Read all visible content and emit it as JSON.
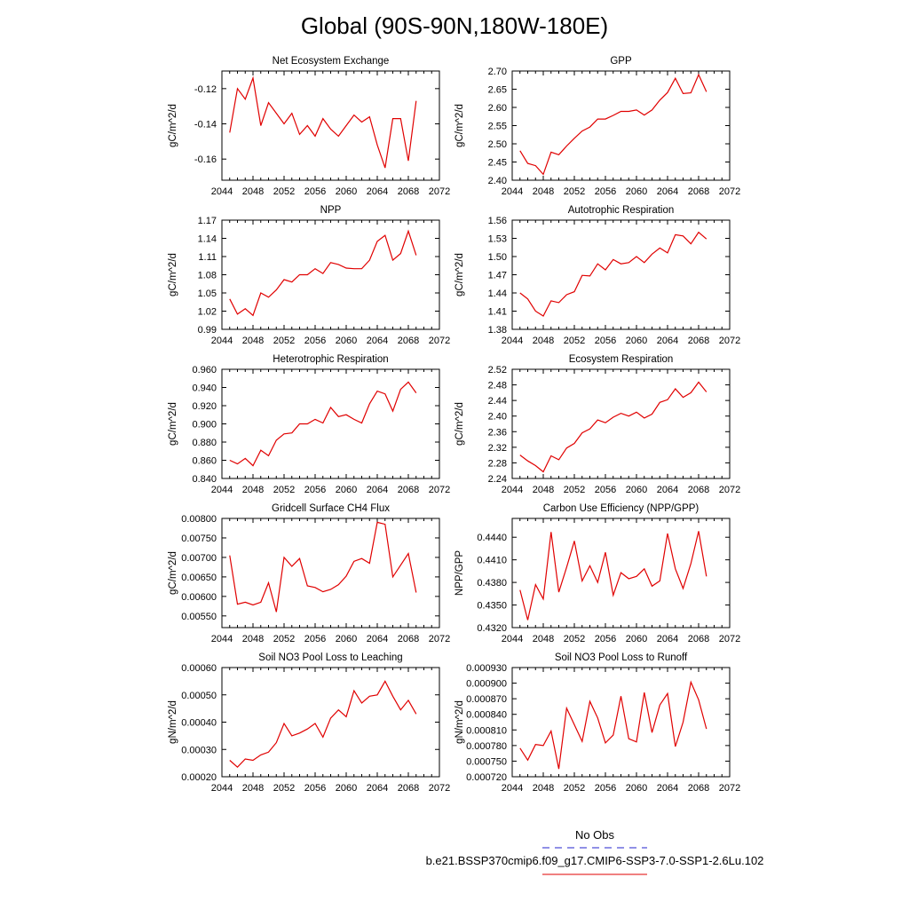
{
  "figure": {
    "title": "Global (90S-90N,180W-180E)",
    "legend": [
      {
        "label": "No Obs",
        "color": "#2222cc",
        "dash": "dashed"
      },
      {
        "label": "b.e21.BSSP370cmip6.f09_g17.CMIP6-SSP3-7.0-SSP1-2.6Lu.102",
        "color": "#e00000",
        "dash": "solid"
      }
    ]
  },
  "chart_data": [
    {
      "type": "line",
      "title": "Net Ecosystem Exchange",
      "ylabel": "gC/m^2/d",
      "xlim": [
        2044,
        2072
      ],
      "ylim": [
        -0.172,
        -0.11
      ],
      "xticks": [
        "2044",
        "2048",
        "2052",
        "2056",
        "2060",
        "2064",
        "2068",
        "2072"
      ],
      "yticks": [
        "-0.12",
        "-0.14",
        "-0.16"
      ],
      "ytick_values": [
        -0.12,
        -0.14,
        -0.16
      ],
      "color": "#e00000",
      "x": [
        2045,
        2046,
        2047,
        2048,
        2049,
        2050,
        2051,
        2052,
        2053,
        2054,
        2055,
        2056,
        2057,
        2058,
        2059,
        2060,
        2061,
        2062,
        2063,
        2064,
        2065,
        2066,
        2067,
        2068,
        2069
      ],
      "y": [
        -0.145,
        -0.12,
        -0.126,
        -0.114,
        -0.141,
        -0.128,
        -0.134,
        -0.14,
        -0.134,
        -0.146,
        -0.141,
        -0.147,
        -0.137,
        -0.143,
        -0.147,
        -0.141,
        -0.135,
        -0.139,
        -0.136,
        -0.152,
        -0.165,
        -0.137,
        -0.137,
        -0.161,
        -0.127
      ]
    },
    {
      "type": "line",
      "title": "GPP",
      "ylabel": "gC/m^2/d",
      "xlim": [
        2044,
        2072
      ],
      "ylim": [
        2.4,
        2.7
      ],
      "xticks": [
        "2044",
        "2048",
        "2052",
        "2056",
        "2060",
        "2064",
        "2068",
        "2072"
      ],
      "yticks": [
        "2.70",
        "2.65",
        "2.60",
        "2.55",
        "2.50",
        "2.45",
        "2.40"
      ],
      "ytick_values": [
        2.7,
        2.65,
        2.6,
        2.55,
        2.5,
        2.45,
        2.4
      ],
      "color": "#e00000",
      "x": [
        2045,
        2046,
        2047,
        2048,
        2049,
        2050,
        2051,
        2052,
        2053,
        2054,
        2055,
        2056,
        2057,
        2058,
        2059,
        2060,
        2061,
        2062,
        2063,
        2064,
        2065,
        2066,
        2067,
        2068,
        2069
      ],
      "y": [
        2.481,
        2.446,
        2.44,
        2.416,
        2.477,
        2.47,
        2.494,
        2.515,
        2.535,
        2.546,
        2.568,
        2.568,
        2.578,
        2.589,
        2.589,
        2.593,
        2.579,
        2.593,
        2.62,
        2.641,
        2.68,
        2.638,
        2.64,
        2.69,
        2.643
      ]
    },
    {
      "type": "line",
      "title": "NPP",
      "ylabel": "gC/m^2/d",
      "xlim": [
        2044,
        2072
      ],
      "ylim": [
        0.99,
        1.17
      ],
      "xticks": [
        "2044",
        "2048",
        "2052",
        "2056",
        "2060",
        "2064",
        "2068",
        "2072"
      ],
      "yticks": [
        "1.17",
        "1.14",
        "1.11",
        "1.08",
        "1.05",
        "1.02",
        "0.99"
      ],
      "ytick_values": [
        1.17,
        1.14,
        1.11,
        1.08,
        1.05,
        1.02,
        0.99
      ],
      "color": "#e00000",
      "x": [
        2045,
        2046,
        2047,
        2048,
        2049,
        2050,
        2051,
        2052,
        2053,
        2054,
        2055,
        2056,
        2057,
        2058,
        2059,
        2060,
        2061,
        2062,
        2063,
        2064,
        2065,
        2066,
        2067,
        2068,
        2069
      ],
      "y": [
        1.04,
        1.015,
        1.024,
        1.013,
        1.05,
        1.043,
        1.055,
        1.072,
        1.068,
        1.08,
        1.08,
        1.09,
        1.082,
        1.1,
        1.097,
        1.091,
        1.09,
        1.09,
        1.104,
        1.135,
        1.145,
        1.104,
        1.115,
        1.152,
        1.112
      ]
    },
    {
      "type": "line",
      "title": "Autotrophic Respiration",
      "ylabel": "gC/m^2/d",
      "xlim": [
        2044,
        2072
      ],
      "ylim": [
        1.38,
        1.56
      ],
      "xticks": [
        "2044",
        "2048",
        "2052",
        "2056",
        "2060",
        "2064",
        "2068",
        "2072"
      ],
      "yticks": [
        "1.56",
        "1.53",
        "1.50",
        "1.47",
        "1.44",
        "1.41",
        "1.38"
      ],
      "ytick_values": [
        1.56,
        1.53,
        1.5,
        1.47,
        1.44,
        1.41,
        1.38
      ],
      "color": "#e00000",
      "x": [
        2045,
        2046,
        2047,
        2048,
        2049,
        2050,
        2051,
        2052,
        2053,
        2054,
        2055,
        2056,
        2057,
        2058,
        2059,
        2060,
        2061,
        2062,
        2063,
        2064,
        2065,
        2066,
        2067,
        2068,
        2069
      ],
      "y": [
        1.44,
        1.43,
        1.41,
        1.402,
        1.427,
        1.424,
        1.437,
        1.442,
        1.469,
        1.468,
        1.488,
        1.478,
        1.495,
        1.488,
        1.49,
        1.5,
        1.49,
        1.504,
        1.514,
        1.506,
        1.536,
        1.534,
        1.521,
        1.54,
        1.529
      ]
    },
    {
      "type": "line",
      "title": "Heterotrophic Respiration",
      "ylabel": "gC/m^2/d",
      "xlim": [
        2044,
        2072
      ],
      "ylim": [
        0.84,
        0.96
      ],
      "xticks": [
        "2044",
        "2048",
        "2052",
        "2056",
        "2060",
        "2064",
        "2068",
        "2072"
      ],
      "yticks": [
        "0.960",
        "0.940",
        "0.920",
        "0.900",
        "0.880",
        "0.860",
        "0.840"
      ],
      "ytick_values": [
        0.96,
        0.94,
        0.92,
        0.9,
        0.88,
        0.86,
        0.84
      ],
      "color": "#e00000",
      "x": [
        2045,
        2046,
        2047,
        2048,
        2049,
        2050,
        2051,
        2052,
        2053,
        2054,
        2055,
        2056,
        2057,
        2058,
        2059,
        2060,
        2061,
        2062,
        2063,
        2064,
        2065,
        2066,
        2067,
        2068,
        2069
      ],
      "y": [
        0.86,
        0.856,
        0.862,
        0.854,
        0.871,
        0.865,
        0.882,
        0.889,
        0.89,
        0.9,
        0.9,
        0.905,
        0.901,
        0.918,
        0.908,
        0.91,
        0.905,
        0.901,
        0.922,
        0.936,
        0.933,
        0.914,
        0.938,
        0.946,
        0.934
      ]
    },
    {
      "type": "line",
      "title": "Ecosystem Respiration",
      "ylabel": "gC/m^2/d",
      "xlim": [
        2044,
        2072
      ],
      "ylim": [
        2.24,
        2.52
      ],
      "xticks": [
        "2044",
        "2048",
        "2052",
        "2056",
        "2060",
        "2064",
        "2068",
        "2072"
      ],
      "yticks": [
        "2.52",
        "2.48",
        "2.44",
        "2.40",
        "2.36",
        "2.32",
        "2.28",
        "2.24"
      ],
      "ytick_values": [
        2.52,
        2.48,
        2.44,
        2.4,
        2.36,
        2.32,
        2.28,
        2.24
      ],
      "color": "#e00000",
      "x": [
        2045,
        2046,
        2047,
        2048,
        2049,
        2050,
        2051,
        2052,
        2053,
        2054,
        2055,
        2056,
        2057,
        2058,
        2059,
        2060,
        2061,
        2062,
        2063,
        2064,
        2065,
        2066,
        2067,
        2068,
        2069
      ],
      "y": [
        2.3,
        2.285,
        2.273,
        2.257,
        2.298,
        2.288,
        2.318,
        2.33,
        2.357,
        2.367,
        2.39,
        2.383,
        2.397,
        2.407,
        2.4,
        2.41,
        2.395,
        2.405,
        2.435,
        2.442,
        2.47,
        2.448,
        2.46,
        2.487,
        2.462
      ]
    },
    {
      "type": "line",
      "title": "Gridcell Surface CH4 Flux",
      "ylabel": "gC/m^2/d",
      "xlim": [
        2044,
        2072
      ],
      "ylim": [
        0.0052,
        0.008
      ],
      "xticks": [
        "2044",
        "2048",
        "2052",
        "2056",
        "2060",
        "2064",
        "2068",
        "2072"
      ],
      "yticks": [
        "0.00800",
        "0.00750",
        "0.00700",
        "0.00650",
        "0.00600",
        "0.00550"
      ],
      "ytick_values": [
        0.008,
        0.0075,
        0.007,
        0.0065,
        0.006,
        0.0055
      ],
      "color": "#e00000",
      "x": [
        2045,
        2046,
        2047,
        2048,
        2049,
        2050,
        2051,
        2052,
        2053,
        2054,
        2055,
        2056,
        2057,
        2058,
        2059,
        2060,
        2061,
        2062,
        2063,
        2064,
        2065,
        2066,
        2067,
        2068,
        2069
      ],
      "y": [
        0.00705,
        0.0058,
        0.00585,
        0.00578,
        0.00585,
        0.00635,
        0.0056,
        0.007,
        0.00677,
        0.00697,
        0.00627,
        0.00623,
        0.00612,
        0.00618,
        0.0063,
        0.00652,
        0.0069,
        0.00697,
        0.00685,
        0.0079,
        0.00785,
        0.0065,
        0.0068,
        0.0071,
        0.0061
      ]
    },
    {
      "type": "line",
      "title": "Carbon Use Efficiency (NPP/GPP)",
      "ylabel": "NPP/GPP",
      "xlim": [
        2044,
        2072
      ],
      "ylim": [
        0.432,
        0.4465
      ],
      "xticks": [
        "2044",
        "2048",
        "2052",
        "2056",
        "2060",
        "2064",
        "2068",
        "2072"
      ],
      "yticks": [
        "0.4440",
        "0.4410",
        "0.4380",
        "0.4350",
        "0.4320"
      ],
      "ytick_values": [
        0.444,
        0.441,
        0.438,
        0.435,
        0.432
      ],
      "color": "#e00000",
      "x": [
        2045,
        2046,
        2047,
        2048,
        2049,
        2050,
        2051,
        2052,
        2053,
        2054,
        2055,
        2056,
        2057,
        2058,
        2059,
        2060,
        2061,
        2062,
        2063,
        2064,
        2065,
        2066,
        2067,
        2068,
        2069
      ],
      "y": [
        0.437,
        0.433,
        0.4377,
        0.4358,
        0.4447,
        0.4367,
        0.44,
        0.4435,
        0.4382,
        0.4402,
        0.438,
        0.442,
        0.4363,
        0.4393,
        0.4385,
        0.4388,
        0.4398,
        0.4375,
        0.4382,
        0.4445,
        0.4398,
        0.4372,
        0.4405,
        0.4448,
        0.4388
      ]
    },
    {
      "type": "line",
      "title": "Soil NO3 Pool Loss to Leaching",
      "ylabel": "gN/m^2/d",
      "xlim": [
        2044,
        2072
      ],
      "ylim": [
        0.0002,
        0.0006
      ],
      "xticks": [
        "2044",
        "2048",
        "2052",
        "2056",
        "2060",
        "2064",
        "2068",
        "2072"
      ],
      "yticks": [
        "0.00060",
        "0.00050",
        "0.00040",
        "0.00030",
        "0.00020"
      ],
      "ytick_values": [
        0.0006,
        0.0005,
        0.0004,
        0.0003,
        0.0002
      ],
      "color": "#e00000",
      "x": [
        2045,
        2046,
        2047,
        2048,
        2049,
        2050,
        2051,
        2052,
        2053,
        2054,
        2055,
        2056,
        2057,
        2058,
        2059,
        2060,
        2061,
        2062,
        2063,
        2064,
        2065,
        2066,
        2067,
        2068,
        2069
      ],
      "y": [
        0.00026,
        0.000235,
        0.000265,
        0.00026,
        0.00028,
        0.00029,
        0.000325,
        0.000395,
        0.00035,
        0.00036,
        0.000375,
        0.000395,
        0.000345,
        0.000415,
        0.000445,
        0.00042,
        0.000515,
        0.00047,
        0.000495,
        0.0005,
        0.00055,
        0.000495,
        0.000445,
        0.00048,
        0.00043
      ]
    },
    {
      "type": "line",
      "title": "Soil NO3 Pool Loss to Runoff",
      "ylabel": "gN/m^2/d",
      "xlim": [
        2044,
        2072
      ],
      "ylim": [
        0.00072,
        0.00093
      ],
      "xticks": [
        "2044",
        "2048",
        "2052",
        "2056",
        "2060",
        "2064",
        "2068",
        "2072"
      ],
      "yticks": [
        "0.000930",
        "0.000900",
        "0.000870",
        "0.000840",
        "0.000810",
        "0.000780",
        "0.000750",
        "0.000720"
      ],
      "ytick_values": [
        0.00093,
        0.0009,
        0.00087,
        0.00084,
        0.00081,
        0.00078,
        0.00075,
        0.00072
      ],
      "color": "#e00000",
      "x": [
        2045,
        2046,
        2047,
        2048,
        2049,
        2050,
        2051,
        2052,
        2053,
        2054,
        2055,
        2056,
        2057,
        2058,
        2059,
        2060,
        2061,
        2062,
        2063,
        2064,
        2065,
        2066,
        2067,
        2068,
        2069
      ],
      "y": [
        0.000775,
        0.000752,
        0.000782,
        0.00078,
        0.000808,
        0.000735,
        0.000852,
        0.00082,
        0.000788,
        0.000865,
        0.000833,
        0.000785,
        0.0008,
        0.000875,
        0.000793,
        0.000787,
        0.000882,
        0.000805,
        0.000858,
        0.00088,
        0.000778,
        0.000825,
        0.000902,
        0.000868,
        0.000812
      ]
    }
  ]
}
